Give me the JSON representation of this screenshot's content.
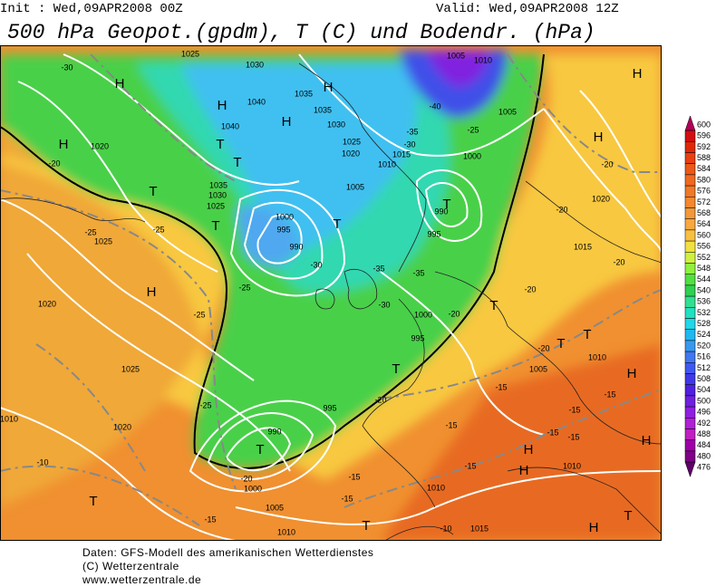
{
  "header": {
    "init": "Init : Wed,09APR2008 00Z",
    "valid": "Valid: Wed,09APR2008 12Z",
    "title": "500 hPa Geopot.(gpdm), T (C) und Bodendr. (hPa)"
  },
  "colorbar": {
    "levels": [
      600,
      596,
      592,
      588,
      584,
      580,
      576,
      572,
      568,
      564,
      560,
      556,
      552,
      548,
      544,
      540,
      536,
      532,
      528,
      524,
      520,
      516,
      512,
      508,
      504,
      500,
      496,
      492,
      488,
      484,
      480,
      476
    ],
    "colors": [
      "#b00058",
      "#d01010",
      "#e02808",
      "#e84010",
      "#ec5818",
      "#f06820",
      "#f07828",
      "#f48830",
      "#f49838",
      "#f8a840",
      "#f8c040",
      "#f0e040",
      "#d0f040",
      "#90f040",
      "#50e040",
      "#30d050",
      "#30e090",
      "#20e0c0",
      "#20d8e8",
      "#20b8f0",
      "#3898f0",
      "#4078f0",
      "#4058f0",
      "#4038e8",
      "#5020e0",
      "#7020e0",
      "#9020e0",
      "#b020d8",
      "#c020c0",
      "#a000a8",
      "#800088",
      "#600068"
    ]
  },
  "map_labels": [
    "H",
    "H",
    "H",
    "H",
    "H",
    "H",
    "H",
    "T",
    "T",
    "T",
    "T",
    "T",
    "T",
    "H",
    "T",
    "T",
    "T",
    "H",
    "T",
    "T",
    "T",
    "H",
    "H",
    "H",
    "T",
    "H",
    "T",
    "1025",
    "1030",
    "1040",
    "1040",
    "1035",
    "1035",
    "1030",
    "1025",
    "1020",
    "1015",
    "1010",
    "1005",
    "1010",
    "1005",
    "1000",
    "1020",
    "1035",
    "1030",
    "1025",
    "1005",
    "1000",
    "995",
    "990",
    "990",
    "995",
    "1025",
    "1020",
    "1025",
    "1020",
    "1010",
    "1000",
    "995",
    "995",
    "990",
    "1000",
    "1005",
    "1010",
    "1010",
    "1015",
    "1005",
    "1010",
    "1010",
    "1015",
    "1020",
    "-30",
    "-20",
    "-25",
    "-25",
    "-25",
    "-25",
    "-25",
    "-20",
    "-10",
    "-15",
    "-30",
    "-30",
    "-35",
    "-35",
    "-40",
    "-35",
    "-30",
    "-25",
    "-20",
    "-20",
    "-15",
    "-15",
    "-15",
    "-15",
    "-10",
    "-15",
    "-15",
    "-15",
    "-15",
    "-20",
    "-20",
    "-20",
    "-20",
    "-15",
    "-20"
  ],
  "footer": {
    "line1": "Daten: GFS-Modell des amerikanischen Wetterdienstes",
    "line2": "(C) Wetterzentrale",
    "line3": "www.wetterzentrale.de"
  }
}
